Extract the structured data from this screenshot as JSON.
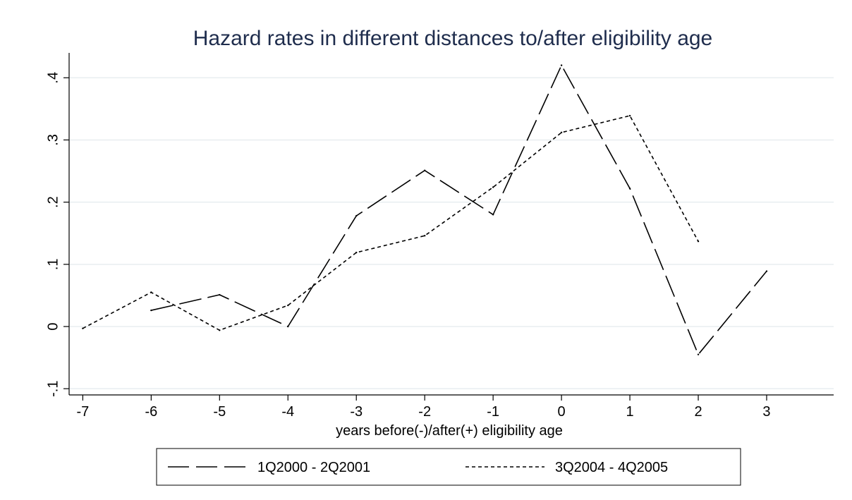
{
  "chart_data": {
    "type": "line",
    "title": "Hazard rates in different distances to/after eligibility age",
    "xlabel": "years before(-)/after(+) eligibility age",
    "ylabel": "",
    "x_ticks": [
      -7,
      -6,
      -5,
      -4,
      -3,
      -2,
      -1,
      0,
      1,
      2,
      3
    ],
    "x_tick_labels": [
      "-7",
      "-6",
      "-5",
      "-4",
      "-3",
      "-2",
      "-1",
      "0",
      "1",
      "2",
      "3"
    ],
    "y_ticks": [
      -0.1,
      0,
      0.1,
      0.2,
      0.3,
      0.4
    ],
    "y_tick_labels": [
      "-.1",
      "0",
      ".1",
      ".2",
      ".3",
      ".4"
    ],
    "xlim": [
      -7.2,
      3.98
    ],
    "ylim": [
      -0.11,
      0.44
    ],
    "grid": "horizontal",
    "legend_position": "bottom",
    "series": [
      {
        "name": "1Q2000 - 2Q2001",
        "style": "long-dash",
        "color": "#000000",
        "x": [
          -6,
          -5,
          -4,
          -3,
          -2,
          -1,
          0,
          1,
          2,
          3
        ],
        "y": [
          0.026,
          0.051,
          0.0,
          0.178,
          0.251,
          0.18,
          0.42,
          0.222,
          -0.045,
          0.089
        ]
      },
      {
        "name": "3Q2004 - 4Q2005",
        "style": "short-dash",
        "color": "#000000",
        "x": [
          -7,
          -6,
          -5,
          -4,
          -3,
          -2,
          -1,
          0,
          1,
          2
        ],
        "y": [
          -0.003,
          0.055,
          -0.006,
          0.034,
          0.119,
          0.146,
          0.224,
          0.312,
          0.339,
          0.137
        ]
      }
    ]
  },
  "colors": {
    "title": "#1f2d4d",
    "grid": "#e8eef0",
    "axis": "#000000",
    "background": "#ffffff"
  }
}
